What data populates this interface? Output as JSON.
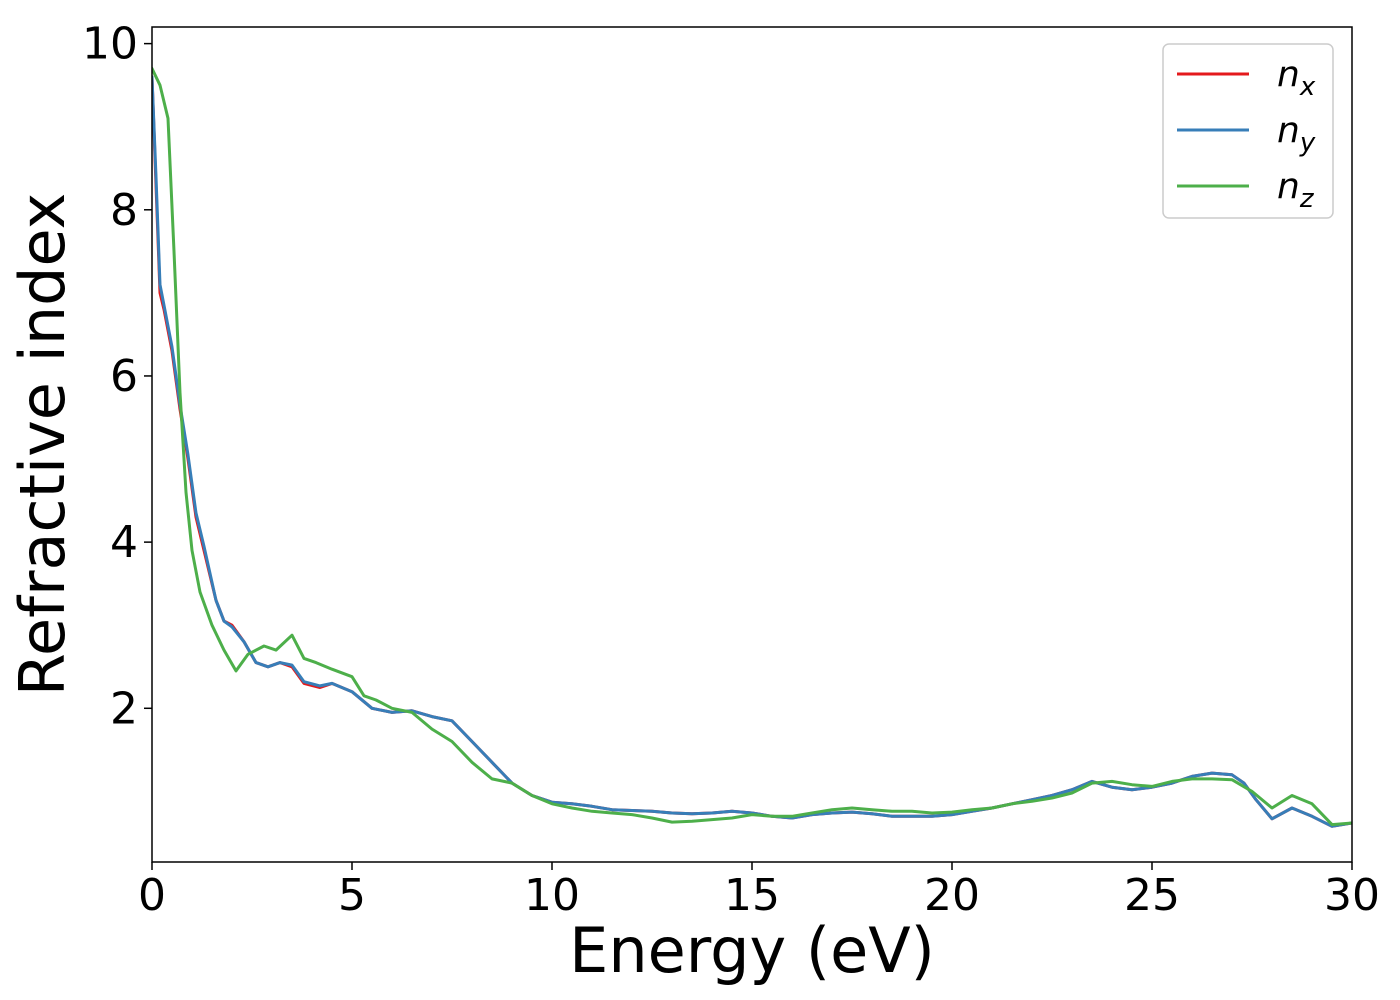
{
  "chart_data": {
    "type": "line",
    "xlabel": "Energy (eV)",
    "ylabel": "Refractive index",
    "xlim": [
      0,
      30
    ],
    "ylim": [
      0.15,
      10.2
    ],
    "xticks": [
      "0",
      "5",
      "10",
      "15",
      "20",
      "25",
      "30"
    ],
    "yticks": [
      "2",
      "4",
      "6",
      "8",
      "10"
    ],
    "grid": false,
    "legend_position": "top-right",
    "series": [
      {
        "name": "n",
        "subscript": "x",
        "color": "#e41a1c",
        "x": [
          0,
          0.1,
          0.2,
          0.3,
          0.5,
          0.7,
          0.9,
          1.1,
          1.3,
          1.6,
          1.8,
          2.0,
          2.3,
          2.6,
          2.9,
          3.2,
          3.5,
          3.8,
          4.2,
          4.5,
          5.0,
          5.5,
          6.0,
          6.5,
          7.0,
          7.5,
          8.0,
          8.5,
          9.0,
          9.5,
          10.0,
          10.5,
          11.0,
          11.5,
          12.0,
          12.5,
          13.0,
          13.5,
          14.0,
          14.5,
          15.0,
          15.5,
          16.0,
          16.5,
          17.0,
          17.5,
          18.0,
          18.5,
          19.0,
          19.5,
          20.0,
          20.5,
          21.0,
          21.5,
          22.0,
          22.5,
          23.0,
          23.5,
          24.0,
          24.5,
          25.0,
          25.5,
          26.0,
          26.5,
          27.0,
          27.3,
          27.6,
          28.0,
          28.5,
          29.0,
          29.5,
          30.0
        ],
        "values": [
          9.6,
          8.3,
          7.0,
          6.8,
          6.3,
          5.6,
          5.0,
          4.3,
          3.9,
          3.3,
          3.05,
          3.0,
          2.8,
          2.55,
          2.5,
          2.55,
          2.5,
          2.3,
          2.25,
          2.3,
          2.2,
          2.0,
          1.95,
          1.97,
          1.9,
          1.85,
          1.6,
          1.35,
          1.1,
          0.95,
          0.87,
          0.85,
          0.82,
          0.78,
          0.77,
          0.76,
          0.74,
          0.73,
          0.74,
          0.76,
          0.74,
          0.7,
          0.68,
          0.72,
          0.74,
          0.75,
          0.73,
          0.7,
          0.7,
          0.7,
          0.72,
          0.76,
          0.8,
          0.85,
          0.9,
          0.95,
          1.02,
          1.12,
          1.05,
          1.02,
          1.05,
          1.1,
          1.18,
          1.22,
          1.2,
          1.1,
          0.9,
          0.67,
          0.8,
          0.7,
          0.58,
          0.62
        ]
      },
      {
        "name": "n",
        "subscript": "y",
        "color": "#377eb8",
        "x": [
          0,
          0.1,
          0.2,
          0.3,
          0.5,
          0.7,
          0.9,
          1.1,
          1.3,
          1.6,
          1.8,
          2.0,
          2.3,
          2.6,
          2.9,
          3.2,
          3.5,
          3.8,
          4.2,
          4.5,
          5.0,
          5.5,
          6.0,
          6.5,
          7.0,
          7.5,
          8.0,
          8.5,
          9.0,
          9.5,
          10.0,
          10.5,
          11.0,
          11.5,
          12.0,
          12.5,
          13.0,
          13.5,
          14.0,
          14.5,
          15.0,
          15.5,
          16.0,
          16.5,
          17.0,
          17.5,
          18.0,
          18.5,
          19.0,
          19.5,
          20.0,
          20.5,
          21.0,
          21.5,
          22.0,
          22.5,
          23.0,
          23.5,
          24.0,
          24.5,
          25.0,
          25.5,
          26.0,
          26.5,
          27.0,
          27.3,
          27.6,
          28.0,
          28.5,
          29.0,
          29.5,
          30.0
        ],
        "values": [
          9.6,
          8.4,
          7.1,
          6.85,
          6.35,
          5.65,
          5.05,
          4.35,
          3.95,
          3.3,
          3.05,
          2.98,
          2.8,
          2.55,
          2.5,
          2.55,
          2.52,
          2.32,
          2.27,
          2.3,
          2.2,
          2.0,
          1.95,
          1.97,
          1.9,
          1.85,
          1.6,
          1.35,
          1.1,
          0.95,
          0.87,
          0.85,
          0.82,
          0.78,
          0.77,
          0.76,
          0.74,
          0.73,
          0.74,
          0.76,
          0.74,
          0.7,
          0.68,
          0.72,
          0.74,
          0.75,
          0.73,
          0.7,
          0.7,
          0.7,
          0.72,
          0.76,
          0.8,
          0.85,
          0.9,
          0.95,
          1.02,
          1.12,
          1.05,
          1.02,
          1.05,
          1.1,
          1.18,
          1.22,
          1.2,
          1.1,
          0.9,
          0.67,
          0.8,
          0.7,
          0.58,
          0.62
        ]
      },
      {
        "name": "n",
        "subscript": "z",
        "color": "#4daf4a",
        "x": [
          0,
          0.2,
          0.4,
          0.55,
          0.7,
          0.85,
          1.0,
          1.2,
          1.5,
          1.8,
          2.1,
          2.4,
          2.8,
          3.1,
          3.5,
          3.8,
          4.1,
          4.5,
          5.0,
          5.3,
          5.6,
          6.0,
          6.5,
          7.0,
          7.5,
          8.0,
          8.5,
          9.0,
          9.5,
          10.0,
          10.5,
          11.0,
          11.5,
          12.0,
          12.5,
          13.0,
          13.5,
          14.0,
          14.5,
          15.0,
          15.5,
          16.0,
          16.5,
          17.0,
          17.5,
          18.0,
          18.5,
          19.0,
          19.5,
          20.0,
          20.5,
          21.0,
          21.5,
          22.0,
          22.5,
          23.0,
          23.5,
          24.0,
          24.5,
          25.0,
          25.5,
          26.0,
          26.5,
          27.0,
          27.5,
          28.0,
          28.5,
          29.0,
          29.5,
          30.0
        ],
        "values": [
          9.7,
          9.5,
          9.1,
          7.5,
          5.8,
          4.6,
          3.9,
          3.4,
          3.0,
          2.7,
          2.45,
          2.65,
          2.75,
          2.7,
          2.88,
          2.6,
          2.55,
          2.47,
          2.38,
          2.15,
          2.1,
          2.0,
          1.95,
          1.75,
          1.6,
          1.35,
          1.15,
          1.1,
          0.95,
          0.85,
          0.8,
          0.76,
          0.74,
          0.72,
          0.68,
          0.63,
          0.64,
          0.66,
          0.68,
          0.72,
          0.7,
          0.7,
          0.74,
          0.78,
          0.8,
          0.78,
          0.76,
          0.76,
          0.74,
          0.75,
          0.78,
          0.8,
          0.85,
          0.88,
          0.92,
          0.98,
          1.1,
          1.12,
          1.08,
          1.06,
          1.12,
          1.15,
          1.15,
          1.14,
          1.0,
          0.8,
          0.95,
          0.85,
          0.6,
          0.62
        ]
      }
    ]
  }
}
